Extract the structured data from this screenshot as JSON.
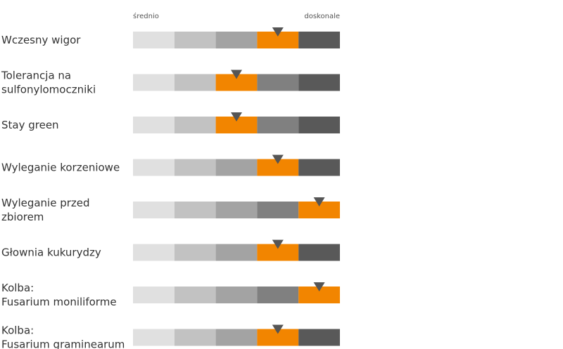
{
  "chart_data": {
    "type": "table",
    "scale": {
      "low_label": "średnio",
      "high_label": "doskonale",
      "levels": 5
    },
    "rows": [
      {
        "label": [
          "Wczesny wigor"
        ],
        "rating": 4
      },
      {
        "label": [
          "Tolerancja na",
          "sulfonylomoczniki"
        ],
        "rating": 3
      },
      {
        "label": [
          "Stay green"
        ],
        "rating": 3
      },
      {
        "label": [
          "Wyleganie korzeniowe"
        ],
        "rating": 4
      },
      {
        "label": [
          "Wyleganie przed",
          "zbiorem"
        ],
        "rating": 5
      },
      {
        "label": [
          "Głownia kukurydzy"
        ],
        "rating": 4
      },
      {
        "label": [
          "Kolba:",
          "Fusarium moniliforme"
        ],
        "rating": 5
      },
      {
        "label": [
          "Kolba:",
          "Fusarium graminearum"
        ],
        "rating": 4
      }
    ],
    "colors": {
      "levels": [
        "#e0e0e0",
        "#c2c2c2",
        "#a3a3a3",
        "#808080",
        "#595959"
      ],
      "highlight": "#f28500",
      "marker": "#555555"
    }
  }
}
